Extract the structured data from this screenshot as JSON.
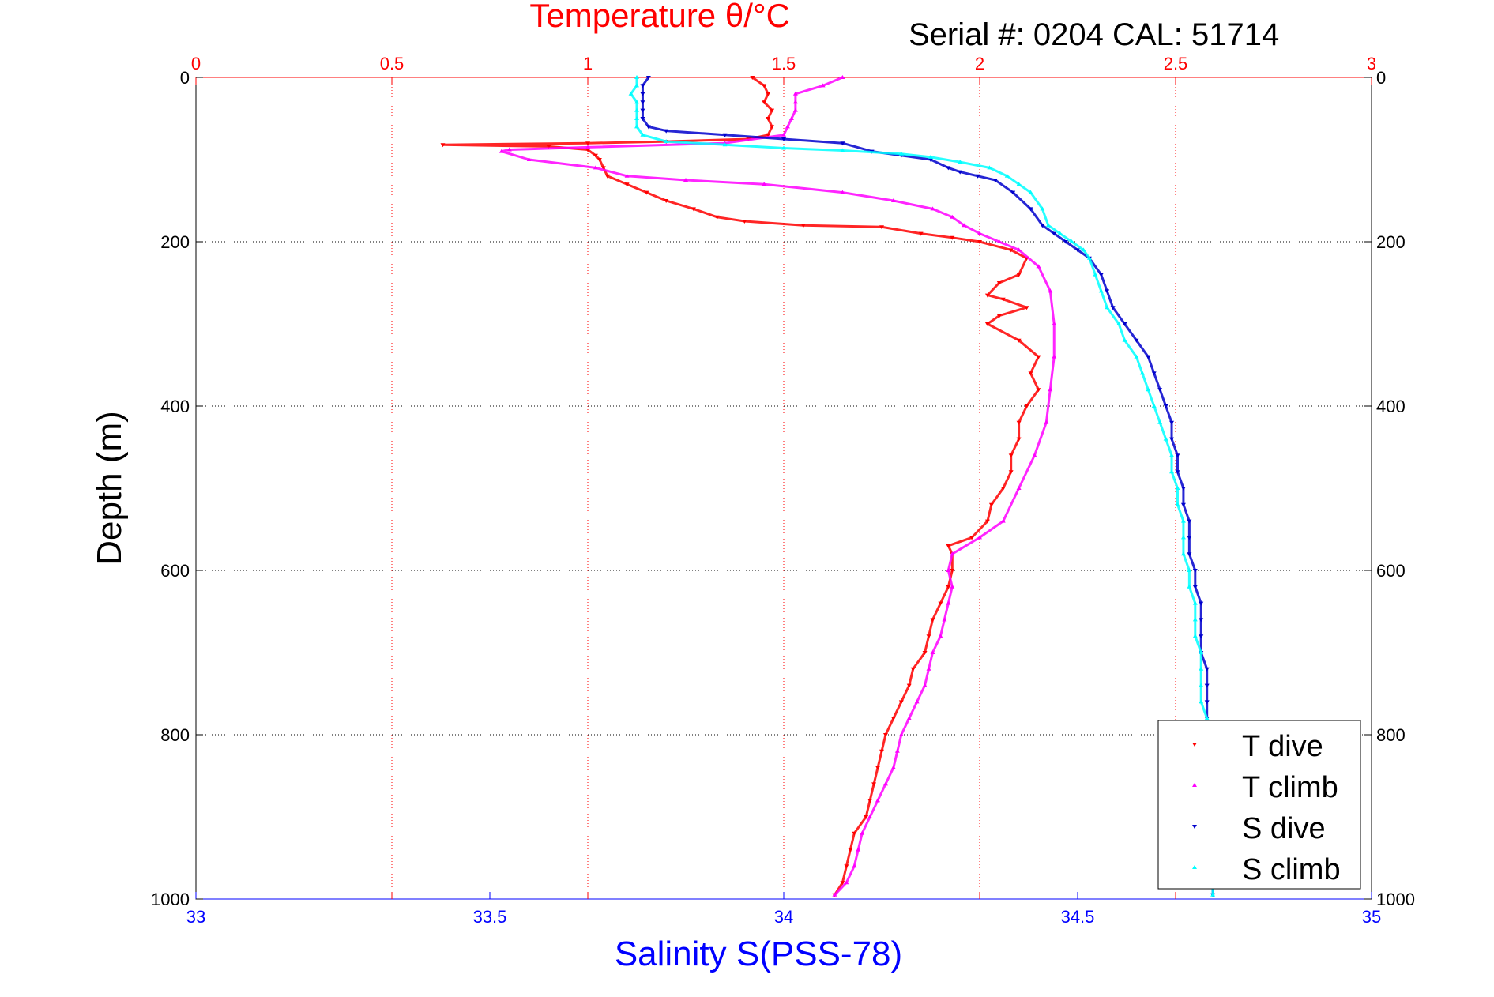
{
  "chart_data": {
    "type": "scatter",
    "title": "Temperature θ/°C",
    "subtitle": "Serial #: 0204  CAL: 51714",
    "ylabel": "Depth (m)",
    "xlabel": "Salinity S(PSS-78)",
    "temperature_axis": {
      "lim": [
        0,
        3
      ],
      "ticks": [
        "0",
        "0.5",
        "1",
        "1.5",
        "2",
        "2.5",
        "3"
      ],
      "color": "#ff0000"
    },
    "salinity_axis": {
      "lim": [
        33,
        35
      ],
      "ticks": [
        "33",
        "33.5",
        "34",
        "34.5",
        "35"
      ],
      "color": "#0000ff"
    },
    "depth_axis": {
      "lim": [
        0,
        1000
      ],
      "reversed": true,
      "ticks": [
        "0",
        "200",
        "400",
        "600",
        "800",
        "1000"
      ]
    },
    "grid": true,
    "legend_placement": "bottom-right",
    "series": [
      {
        "name": "T dive",
        "axis": "temperature",
        "color": "#ff0000",
        "marker": "triangle-down",
        "points": [
          [
            1.42,
            0
          ],
          [
            1.45,
            10
          ],
          [
            1.46,
            20
          ],
          [
            1.45,
            30
          ],
          [
            1.47,
            40
          ],
          [
            1.46,
            50
          ],
          [
            1.47,
            60
          ],
          [
            1.46,
            70
          ],
          [
            1.41,
            75
          ],
          [
            1.2,
            78
          ],
          [
            1.0,
            80
          ],
          [
            0.63,
            82
          ],
          [
            0.9,
            84
          ],
          [
            1.0,
            88
          ],
          [
            1.02,
            95
          ],
          [
            1.03,
            100
          ],
          [
            1.04,
            110
          ],
          [
            1.05,
            120
          ],
          [
            1.1,
            130
          ],
          [
            1.15,
            140
          ],
          [
            1.2,
            150
          ],
          [
            1.27,
            160
          ],
          [
            1.33,
            170
          ],
          [
            1.4,
            175
          ],
          [
            1.55,
            180
          ],
          [
            1.75,
            182
          ],
          [
            1.85,
            190
          ],
          [
            1.93,
            195
          ],
          [
            2.0,
            200
          ],
          [
            2.08,
            210
          ],
          [
            2.12,
            220
          ],
          [
            2.1,
            240
          ],
          [
            2.05,
            250
          ],
          [
            2.02,
            265
          ],
          [
            2.06,
            270
          ],
          [
            2.12,
            280
          ],
          [
            2.05,
            290
          ],
          [
            2.02,
            300
          ],
          [
            2.1,
            320
          ],
          [
            2.15,
            340
          ],
          [
            2.13,
            360
          ],
          [
            2.15,
            380
          ],
          [
            2.12,
            400
          ],
          [
            2.1,
            420
          ],
          [
            2.1,
            440
          ],
          [
            2.08,
            460
          ],
          [
            2.08,
            480
          ],
          [
            2.06,
            500
          ],
          [
            2.03,
            520
          ],
          [
            2.02,
            540
          ],
          [
            1.98,
            560
          ],
          [
            1.92,
            570
          ],
          [
            1.93,
            580
          ],
          [
            1.93,
            600
          ],
          [
            1.92,
            620
          ],
          [
            1.9,
            640
          ],
          [
            1.88,
            660
          ],
          [
            1.87,
            680
          ],
          [
            1.86,
            700
          ],
          [
            1.83,
            720
          ],
          [
            1.82,
            740
          ],
          [
            1.8,
            760
          ],
          [
            1.78,
            780
          ],
          [
            1.76,
            800
          ],
          [
            1.75,
            820
          ],
          [
            1.74,
            840
          ],
          [
            1.73,
            860
          ],
          [
            1.72,
            880
          ],
          [
            1.71,
            900
          ],
          [
            1.68,
            920
          ],
          [
            1.67,
            940
          ],
          [
            1.66,
            960
          ],
          [
            1.65,
            980
          ],
          [
            1.63,
            995
          ]
        ]
      },
      {
        "name": "T climb",
        "axis": "temperature",
        "color": "#ff00ff",
        "marker": "triangle-up",
        "points": [
          [
            1.65,
            0
          ],
          [
            1.6,
            10
          ],
          [
            1.53,
            20
          ],
          [
            1.53,
            30
          ],
          [
            1.53,
            40
          ],
          [
            1.52,
            50
          ],
          [
            1.51,
            60
          ],
          [
            1.5,
            70
          ],
          [
            1.35,
            80
          ],
          [
            1.0,
            85
          ],
          [
            0.8,
            88
          ],
          [
            0.78,
            90
          ],
          [
            0.85,
            100
          ],
          [
            1.02,
            110
          ],
          [
            1.1,
            120
          ],
          [
            1.25,
            125
          ],
          [
            1.45,
            130
          ],
          [
            1.65,
            140
          ],
          [
            1.78,
            150
          ],
          [
            1.88,
            160
          ],
          [
            1.93,
            170
          ],
          [
            1.96,
            180
          ],
          [
            2.0,
            190
          ],
          [
            2.05,
            200
          ],
          [
            2.1,
            210
          ],
          [
            2.15,
            230
          ],
          [
            2.18,
            260
          ],
          [
            2.19,
            300
          ],
          [
            2.19,
            340
          ],
          [
            2.18,
            380
          ],
          [
            2.17,
            420
          ],
          [
            2.14,
            460
          ],
          [
            2.1,
            500
          ],
          [
            2.06,
            540
          ],
          [
            2.0,
            560
          ],
          [
            1.93,
            580
          ],
          [
            1.92,
            600
          ],
          [
            1.93,
            620
          ],
          [
            1.92,
            640
          ],
          [
            1.91,
            660
          ],
          [
            1.9,
            680
          ],
          [
            1.88,
            700
          ],
          [
            1.87,
            720
          ],
          [
            1.86,
            740
          ],
          [
            1.84,
            760
          ],
          [
            1.82,
            780
          ],
          [
            1.8,
            800
          ],
          [
            1.79,
            820
          ],
          [
            1.78,
            840
          ],
          [
            1.76,
            860
          ],
          [
            1.74,
            880
          ],
          [
            1.72,
            900
          ],
          [
            1.7,
            920
          ],
          [
            1.69,
            940
          ],
          [
            1.68,
            960
          ],
          [
            1.66,
            980
          ],
          [
            1.63,
            995
          ]
        ]
      },
      {
        "name": "S dive",
        "axis": "salinity",
        "color": "#0000cc",
        "marker": "triangle-down",
        "points": [
          [
            33.77,
            0
          ],
          [
            33.76,
            10
          ],
          [
            33.76,
            20
          ],
          [
            33.76,
            30
          ],
          [
            33.76,
            40
          ],
          [
            33.76,
            50
          ],
          [
            33.77,
            60
          ],
          [
            33.8,
            65
          ],
          [
            33.9,
            70
          ],
          [
            34.0,
            75
          ],
          [
            34.1,
            80
          ],
          [
            34.15,
            90
          ],
          [
            34.2,
            95
          ],
          [
            34.25,
            100
          ],
          [
            34.28,
            110
          ],
          [
            34.3,
            115
          ],
          [
            34.33,
            120
          ],
          [
            34.36,
            125
          ],
          [
            34.39,
            140
          ],
          [
            34.42,
            160
          ],
          [
            34.44,
            180
          ],
          [
            34.46,
            190
          ],
          [
            34.48,
            200
          ],
          [
            34.5,
            210
          ],
          [
            34.52,
            220
          ],
          [
            34.54,
            240
          ],
          [
            34.55,
            260
          ],
          [
            34.56,
            280
          ],
          [
            34.58,
            300
          ],
          [
            34.6,
            320
          ],
          [
            34.62,
            340
          ],
          [
            34.63,
            360
          ],
          [
            34.64,
            380
          ],
          [
            34.65,
            400
          ],
          [
            34.66,
            420
          ],
          [
            34.66,
            440
          ],
          [
            34.67,
            460
          ],
          [
            34.67,
            480
          ],
          [
            34.68,
            500
          ],
          [
            34.68,
            520
          ],
          [
            34.69,
            540
          ],
          [
            34.69,
            560
          ],
          [
            34.69,
            580
          ],
          [
            34.7,
            600
          ],
          [
            34.7,
            620
          ],
          [
            34.71,
            640
          ],
          [
            34.71,
            660
          ],
          [
            34.71,
            680
          ],
          [
            34.71,
            700
          ],
          [
            34.72,
            720
          ],
          [
            34.72,
            740
          ],
          [
            34.72,
            760
          ],
          [
            34.72,
            780
          ],
          [
            34.72,
            800
          ],
          [
            34.72,
            850
          ],
          [
            34.72,
            900
          ],
          [
            34.73,
            950
          ],
          [
            34.73,
            995
          ]
        ]
      },
      {
        "name": "S climb",
        "axis": "salinity",
        "color": "#00ffff",
        "marker": "triangle-up",
        "points": [
          [
            33.75,
            0
          ],
          [
            33.75,
            10
          ],
          [
            33.74,
            20
          ],
          [
            33.75,
            30
          ],
          [
            33.75,
            40
          ],
          [
            33.75,
            50
          ],
          [
            33.75,
            60
          ],
          [
            33.76,
            70
          ],
          [
            33.8,
            78
          ],
          [
            33.9,
            82
          ],
          [
            34.0,
            86
          ],
          [
            34.1,
            89
          ],
          [
            34.2,
            93
          ],
          [
            34.25,
            97
          ],
          [
            34.3,
            103
          ],
          [
            34.35,
            110
          ],
          [
            34.38,
            120
          ],
          [
            34.4,
            130
          ],
          [
            34.42,
            140
          ],
          [
            34.44,
            160
          ],
          [
            34.45,
            180
          ],
          [
            34.47,
            190
          ],
          [
            34.49,
            200
          ],
          [
            34.51,
            210
          ],
          [
            34.52,
            220
          ],
          [
            34.53,
            240
          ],
          [
            34.54,
            260
          ],
          [
            34.55,
            280
          ],
          [
            34.57,
            300
          ],
          [
            34.58,
            320
          ],
          [
            34.6,
            340
          ],
          [
            34.61,
            360
          ],
          [
            34.62,
            380
          ],
          [
            34.63,
            400
          ],
          [
            34.64,
            420
          ],
          [
            34.65,
            440
          ],
          [
            34.66,
            460
          ],
          [
            34.66,
            480
          ],
          [
            34.67,
            500
          ],
          [
            34.67,
            520
          ],
          [
            34.68,
            540
          ],
          [
            34.68,
            560
          ],
          [
            34.68,
            580
          ],
          [
            34.69,
            600
          ],
          [
            34.69,
            620
          ],
          [
            34.7,
            640
          ],
          [
            34.7,
            660
          ],
          [
            34.7,
            680
          ],
          [
            34.71,
            700
          ],
          [
            34.71,
            720
          ],
          [
            34.71,
            740
          ],
          [
            34.71,
            760
          ],
          [
            34.72,
            780
          ],
          [
            34.72,
            800
          ],
          [
            34.72,
            850
          ],
          [
            34.72,
            900
          ],
          [
            34.73,
            950
          ],
          [
            34.73,
            995
          ]
        ]
      }
    ]
  }
}
